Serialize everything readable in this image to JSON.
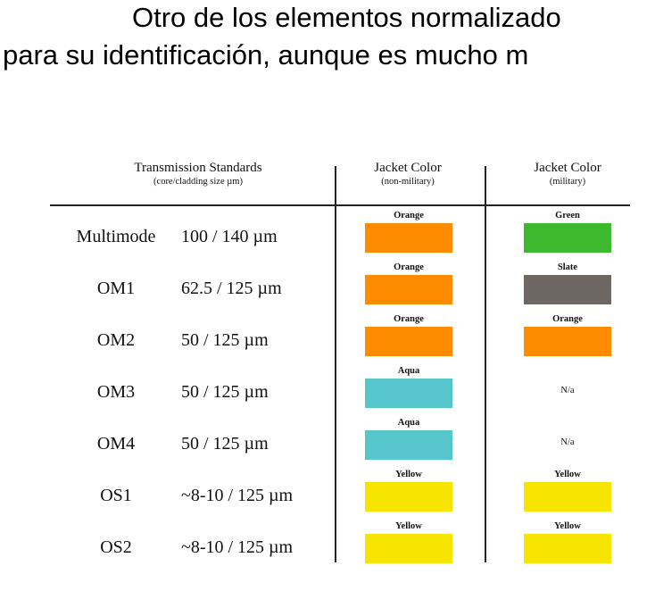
{
  "intro": {
    "line1": "Otro de los elementos normalizado",
    "line2": "para su identificación, aunque es mucho m"
  },
  "header": {
    "standards_title": "Transmission Standards",
    "standards_sub": "(core/cladding size µm)",
    "jacket_nonmil_title": "Jacket Color",
    "jacket_nonmil_sub": "(non-military)",
    "jacket_mil_title": "Jacket Color",
    "jacket_mil_sub": "(military)"
  },
  "rows": [
    {
      "name": "Multimode",
      "size": "100 / 140 µm",
      "nonmil": {
        "label": "Orange",
        "color": "#FF8C00"
      },
      "mil": {
        "label": "Green",
        "color": "#3DB82F"
      }
    },
    {
      "name": "OM1",
      "size": "62.5 / 125 µm",
      "nonmil": {
        "label": "Orange",
        "color": "#FF8C00"
      },
      "mil": {
        "label": "Slate",
        "color": "#6E6660"
      }
    },
    {
      "name": "OM2",
      "size": "50 / 125 µm",
      "nonmil": {
        "label": "Orange",
        "color": "#FF8C00"
      },
      "mil": {
        "label": "Orange",
        "color": "#FF8C00"
      }
    },
    {
      "name": "OM3",
      "size": "50 / 125 µm",
      "nonmil": {
        "label": "Aqua",
        "color": "#57C6CC"
      },
      "mil": {
        "label": "N/a",
        "color": ""
      }
    },
    {
      "name": "OM4",
      "size": "50 / 125 µm",
      "nonmil": {
        "label": "Aqua",
        "color": "#57C6CC"
      },
      "mil": {
        "label": "N/a",
        "color": ""
      }
    },
    {
      "name": "OS1",
      "size": "~8-10 / 125 µm",
      "nonmil": {
        "label": "Yellow",
        "color": "#F5E500"
      },
      "mil": {
        "label": "Yellow",
        "color": "#F5E500"
      }
    },
    {
      "name": "OS2",
      "size": "~8-10 / 125 µm",
      "nonmil": {
        "label": "Yellow",
        "color": "#F5E500"
      },
      "mil": {
        "label": "Yellow",
        "color": "#F5E500"
      }
    }
  ]
}
